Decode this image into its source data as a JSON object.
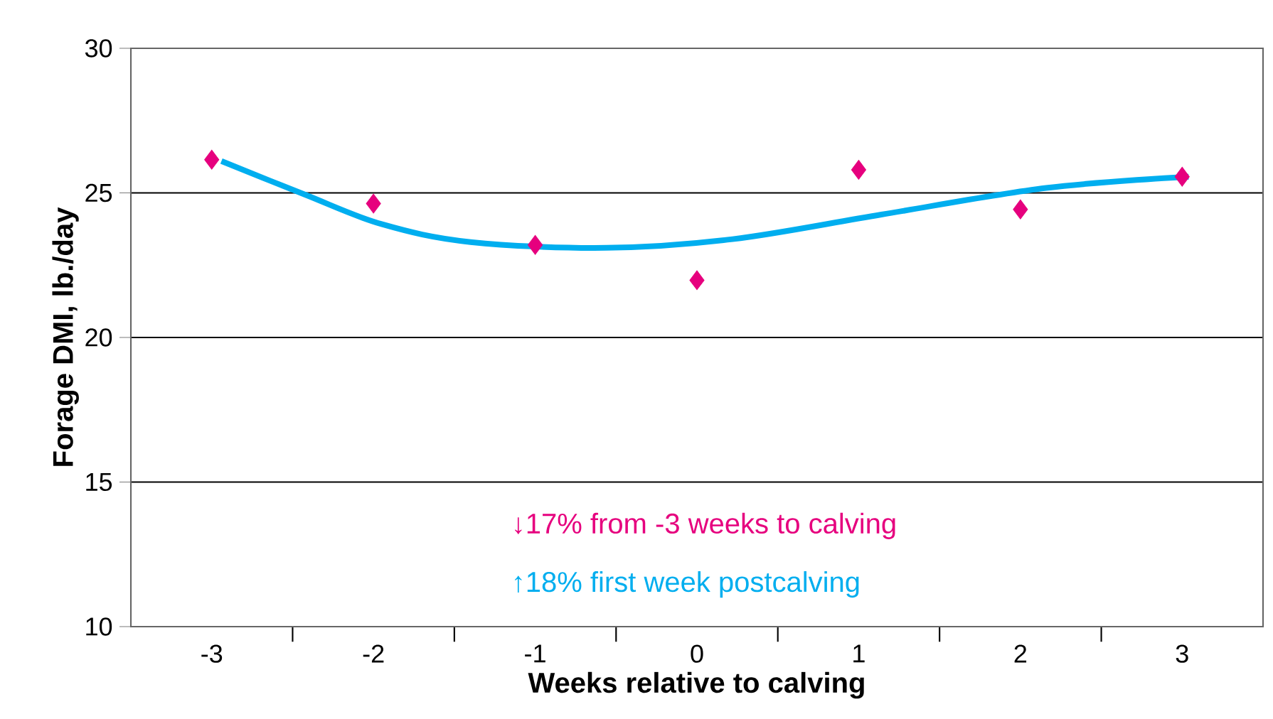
{
  "chart_data": {
    "type": "scatter",
    "xlabel": "Weeks relative to calving",
    "ylabel": "Forage DMI, lb./day",
    "xlim": [
      -3.5,
      3.5
    ],
    "ylim": [
      10,
      30
    ],
    "xticks": [
      {
        "value": -3,
        "label": "-3"
      },
      {
        "value": -2.5,
        "label": null
      },
      {
        "value": -2,
        "label": "-2"
      },
      {
        "value": -1.5,
        "label": null
      },
      {
        "value": -1,
        "label": "-1"
      },
      {
        "value": -0.5,
        "label": null
      },
      {
        "value": 0,
        "label": "0"
      },
      {
        "value": 0.5,
        "label": null
      },
      {
        "value": 1,
        "label": "1"
      },
      {
        "value": 1.5,
        "label": null
      },
      {
        "value": 2,
        "label": "2"
      },
      {
        "value": 2.5,
        "label": null
      },
      {
        "value": 3,
        "label": "3"
      }
    ],
    "yticks": [
      10,
      15,
      20,
      25,
      30
    ],
    "grid": "y",
    "series": [
      {
        "marker": "diamond",
        "color": "#e6007e",
        "x": [
          -3,
          -2,
          -1,
          0,
          1,
          2,
          3
        ],
        "values": [
          26.15,
          24.63,
          23.2,
          21.98,
          25.8,
          24.43,
          25.56
        ]
      },
      {
        "type": "line",
        "marker": "none",
        "color": "#00aeef",
        "x": [
          -2.94,
          -2.42,
          -1.95,
          -1.4,
          -0.56,
          0.22,
          1.14,
          2.16,
          3.04
        ],
        "values": [
          26.1,
          24.93,
          23.92,
          23.3,
          23.1,
          23.4,
          24.25,
          25.17,
          25.56
        ]
      }
    ],
    "annotations": [
      "↓17% from -3 weeks to calving",
      "↑18% first week postcalving"
    ]
  }
}
